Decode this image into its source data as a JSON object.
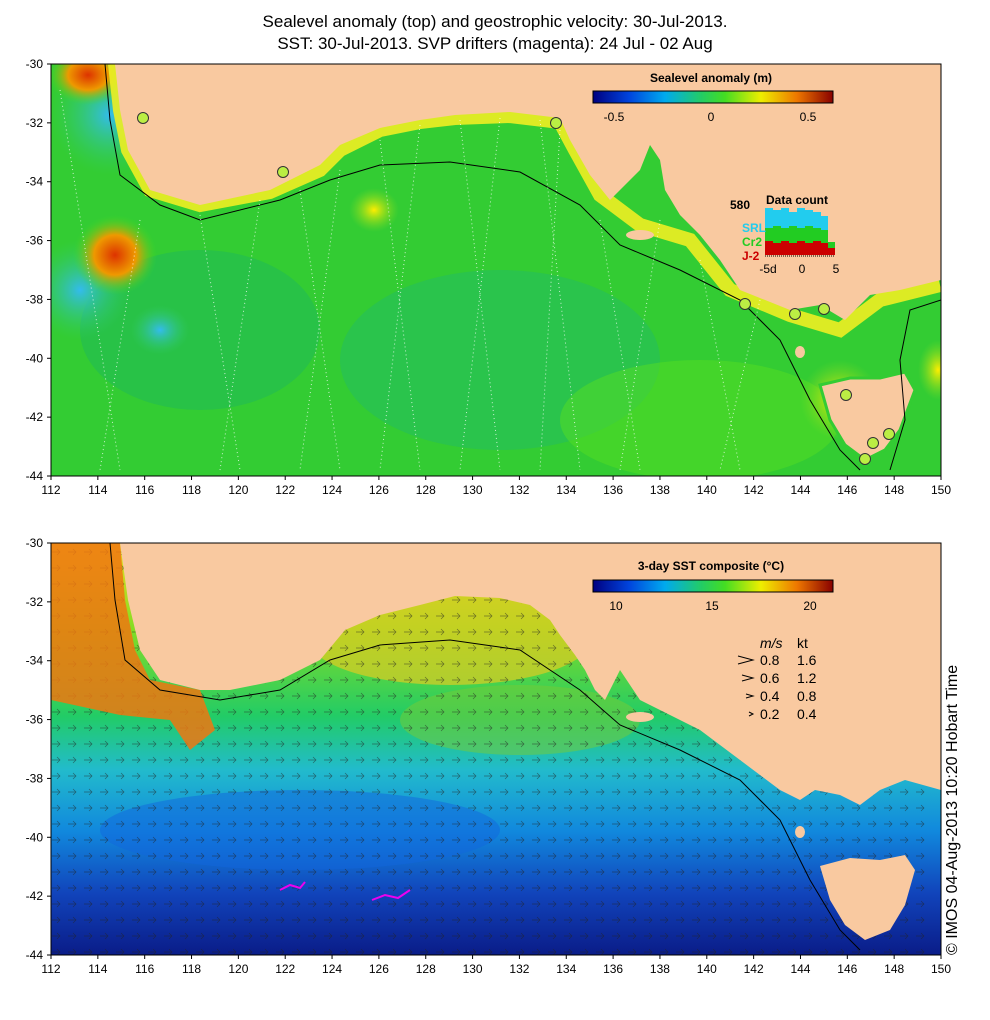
{
  "titles": {
    "line1": "Sealevel anomaly (top) and geostrophic velocity: 30-Jul-2013.",
    "line2": "SST: 30-Jul-2013. SVP drifters (magenta): 24 Jul - 02 Aug"
  },
  "axes": {
    "lon_ticks": [
      "112",
      "114",
      "116",
      "118",
      "120",
      "122",
      "124",
      "126",
      "128",
      "130",
      "132",
      "134",
      "136",
      "138",
      "140",
      "142",
      "144",
      "146",
      "148",
      "150"
    ],
    "lat_ticks": [
      "-30",
      "-32",
      "-34",
      "-36",
      "-38",
      "-40",
      "-42",
      "-44"
    ]
  },
  "top_panel": {
    "colorbar_title": "Sealevel anomaly (m)",
    "colorbar_ticks": [
      "-0.5",
      "0",
      "0.5"
    ],
    "data_count": {
      "title": "Data count",
      "max_label": "580",
      "labels": [
        "SRL",
        "Cr2",
        "J-2"
      ],
      "label_colors": [
        "#22ccee",
        "#22cc22",
        "#cc0000"
      ],
      "xticks": [
        "-5d",
        "0",
        "5"
      ]
    }
  },
  "bottom_panel": {
    "colorbar_title": "3-day SST composite (°C)",
    "colorbar_ticks": [
      "10",
      "15",
      "20"
    ],
    "velocity_legend": {
      "headers": [
        "m/s",
        "kt"
      ],
      "rows": [
        {
          "ms": "0.8",
          "kt": "1.6"
        },
        {
          "ms": "0.6",
          "kt": "1.2"
        },
        {
          "ms": "0.4",
          "kt": "0.8"
        },
        {
          "ms": "0.2",
          "kt": "0.4"
        }
      ]
    }
  },
  "credit": "© IMOS 04-Aug-2013 10:20 Hobart Time",
  "colors": {
    "land": "#f9c9a0",
    "sla_ocean": "#33cc33",
    "sst_ocean": "#2266dd"
  }
}
